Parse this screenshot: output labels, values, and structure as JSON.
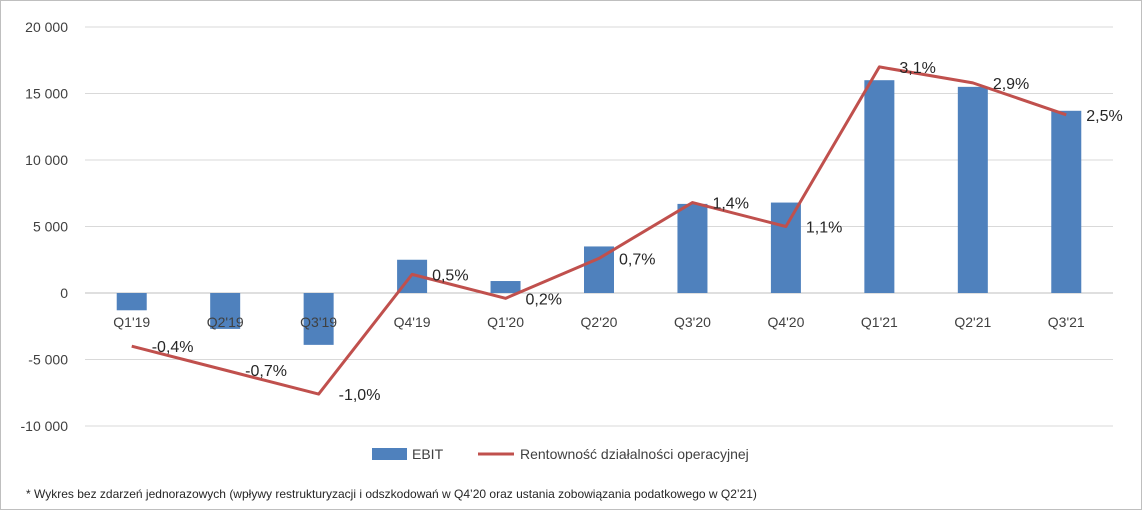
{
  "chart_data": {
    "type": "bar",
    "categories": [
      "Q1'19",
      "Q2'19",
      "Q3'19",
      "Q4'19",
      "Q1'20",
      "Q2'20",
      "Q3'20",
      "Q4'20",
      "Q1'21",
      "Q2'21",
      "Q3'21"
    ],
    "series": [
      {
        "name": "EBIT",
        "type": "bar",
        "axis": "left",
        "color": "#4f81bd",
        "values": [
          -1300,
          -2700,
          -3900,
          2500,
          900,
          3500,
          6700,
          6800,
          16000,
          15500,
          13700
        ]
      },
      {
        "name": "Rentowność działalności operacyjnej",
        "type": "line",
        "axis": "right-hidden",
        "color": "#c0504d",
        "values": [
          -0.4,
          -0.7,
          -1.0,
          0.5,
          0.2,
          0.7,
          1.4,
          1.1,
          3.1,
          2.9,
          2.5
        ],
        "labels": [
          "-0,4%",
          "-0,7%",
          "-1,0%",
          "0,5%",
          "0,2%",
          "0,7%",
          "1,4%",
          "1,1%",
          "3,1%",
          "2,9%",
          "2,5%"
        ]
      }
    ],
    "y_ticks": [
      20000,
      15000,
      10000,
      5000,
      0,
      -5000,
      -10000
    ],
    "y_tick_labels": [
      "20 000",
      "15 000",
      "10 000",
      "5 000",
      "0",
      "-5 000",
      "-10 000"
    ],
    "ylim": [
      -10000,
      20000
    ],
    "y2lim": [
      -1.4,
      3.6
    ],
    "grid": true,
    "legend": "bottom-center",
    "footnote": "* Wykres bez zdarzeń jednorazowych (wpływy restrukturyzacji i odszkodowań w Q4’20 oraz ustania zobowiązania podatkowego w Q2’21)"
  }
}
